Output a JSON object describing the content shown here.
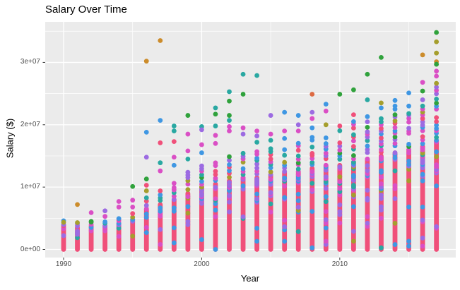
{
  "chart_data": {
    "type": "scatter",
    "title": "Salary Over Time",
    "xlabel": "Year",
    "ylabel": "Salary ($)",
    "x_ticks": [
      {
        "value": 1990,
        "label": "1990"
      },
      {
        "value": 2000,
        "label": "2000"
      },
      {
        "value": 2010,
        "label": "2010"
      }
    ],
    "y_ticks": [
      {
        "value": 0,
        "label": "0e+00"
      },
      {
        "value": 10000000,
        "label": "1e+07"
      },
      {
        "value": 20000000,
        "label": "2e+07"
      },
      {
        "value": 30000000,
        "label": "3e+07"
      }
    ],
    "x_minor": [
      1995,
      2005,
      2015
    ],
    "y_minor": [
      5000000,
      15000000,
      25000000,
      35000000
    ],
    "xlim": [
      1988.67,
      2018.4
    ],
    "ylim": [
      -1300000,
      36500000
    ],
    "grid": {
      "panel_bg": "#EBEBEB",
      "major_color": "#FFFFFF",
      "minor_color": "#FFFFFF",
      "tick_color": "#333333",
      "text_color": "#4D4D4D"
    },
    "legend": "none",
    "point_radius": 3.4,
    "palette": {
      "pink": "#F0507A",
      "magenta": "#DA4FC5",
      "purple": "#9C6BE2",
      "blue": "#3F97E3",
      "teal": "#29A8A2",
      "green": "#30A23C",
      "olive": "#A59E2D",
      "orange": "#CC8C2B",
      "orangered": "#DD6A42"
    },
    "dominant_color": "pink",
    "years": [
      {
        "year": 1990,
        "dense_top": 3600000,
        "mid_top": 4100000,
        "top_points": [
          {
            "v": 4600000,
            "c": "blue"
          },
          {
            "v": 4350000,
            "c": "olive"
          }
        ]
      },
      {
        "year": 1991,
        "dense_top": 3500000,
        "mid_top": 4050000,
        "top_points": [
          {
            "v": 7200000,
            "c": "orange"
          },
          {
            "v": 4300000,
            "c": "olive"
          }
        ]
      },
      {
        "year": 1992,
        "dense_top": 3800000,
        "mid_top": 4300000,
        "top_points": [
          {
            "v": 5900000,
            "c": "magenta"
          },
          {
            "v": 4500000,
            "c": "green"
          }
        ]
      },
      {
        "year": 1993,
        "dense_top": 3800000,
        "mid_top": 4450000,
        "top_points": [
          {
            "v": 6200000,
            "c": "purple"
          },
          {
            "v": 5300000,
            "c": "magenta"
          }
        ]
      },
      {
        "year": 1994,
        "dense_top": 4200000,
        "mid_top": 4800000,
        "top_points": [
          {
            "v": 7700000,
            "c": "magenta"
          },
          {
            "v": 6800000,
            "c": "magenta"
          },
          {
            "v": 4950000,
            "c": "blue"
          }
        ]
      },
      {
        "year": 1995,
        "dense_top": 4800000,
        "mid_top": 5700000,
        "top_points": [
          {
            "v": 10100000,
            "c": "green"
          },
          {
            "v": 7900000,
            "c": "magenta"
          },
          {
            "v": 6800000,
            "c": "magenta"
          }
        ]
      },
      {
        "year": 1996,
        "dense_top": 6500000,
        "mid_top": 8300000,
        "top_points": [
          {
            "v": 30200000,
            "c": "orange"
          },
          {
            "v": 18800000,
            "c": "blue"
          },
          {
            "v": 14800000,
            "c": "purple"
          },
          {
            "v": 11300000,
            "c": "green"
          },
          {
            "v": 10300000,
            "c": "pink"
          },
          {
            "v": 9400000,
            "c": "olive"
          }
        ]
      },
      {
        "year": 1997,
        "dense_top": 7200000,
        "mid_top": 10000000,
        "top_points": [
          {
            "v": 33500000,
            "c": "orange"
          },
          {
            "v": 20700000,
            "c": "blue"
          },
          {
            "v": 17100000,
            "c": "pink"
          },
          {
            "v": 13900000,
            "c": "teal"
          },
          {
            "v": 12600000,
            "c": "magenta"
          }
        ]
      },
      {
        "year": 1998,
        "dense_top": 8000000,
        "mid_top": 11500000,
        "top_points": [
          {
            "v": 19800000,
            "c": "teal"
          },
          {
            "v": 19000000,
            "c": "teal"
          },
          {
            "v": 17300000,
            "c": "pink"
          },
          {
            "v": 14800000,
            "c": "magenta"
          },
          {
            "v": 13500000,
            "c": "blue"
          }
        ]
      },
      {
        "year": 1999,
        "dense_top": 9000000,
        "mid_top": 12500000,
        "top_points": [
          {
            "v": 21500000,
            "c": "green"
          },
          {
            "v": 18500000,
            "c": "magenta"
          },
          {
            "v": 15800000,
            "c": "magenta"
          },
          {
            "v": 14500000,
            "c": "teal"
          }
        ]
      },
      {
        "year": 2000,
        "dense_top": 10000000,
        "mid_top": 13500000,
        "top_points": [
          {
            "v": 19700000,
            "c": "teal"
          },
          {
            "v": 19200000,
            "c": "purple"
          },
          {
            "v": 16800000,
            "c": "magenta"
          },
          {
            "v": 15500000,
            "c": "blue"
          }
        ]
      },
      {
        "year": 2001,
        "dense_top": 10500000,
        "mid_top": 14000000,
        "top_points": [
          {
            "v": 22700000,
            "c": "teal"
          },
          {
            "v": 21700000,
            "c": "green"
          },
          {
            "v": 19800000,
            "c": "teal"
          },
          {
            "v": 18300000,
            "c": "magenta"
          },
          {
            "v": 17000000,
            "c": "magenta"
          }
        ]
      },
      {
        "year": 2002,
        "dense_top": 11000000,
        "mid_top": 14800000,
        "top_points": [
          {
            "v": 25300000,
            "c": "teal"
          },
          {
            "v": 23800000,
            "c": "green"
          },
          {
            "v": 21500000,
            "c": "green"
          },
          {
            "v": 20700000,
            "c": "teal"
          },
          {
            "v": 19700000,
            "c": "magenta"
          },
          {
            "v": 19000000,
            "c": "magenta"
          }
        ]
      },
      {
        "year": 2003,
        "dense_top": 11500000,
        "mid_top": 15500000,
        "top_points": [
          {
            "v": 28100000,
            "c": "teal"
          },
          {
            "v": 24900000,
            "c": "green"
          },
          {
            "v": 19500000,
            "c": "magenta"
          },
          {
            "v": 18500000,
            "c": "purple"
          }
        ]
      },
      {
        "year": 2004,
        "dense_top": 11500000,
        "mid_top": 15800000,
        "top_points": [
          {
            "v": 27900000,
            "c": "teal"
          },
          {
            "v": 19000000,
            "c": "magenta"
          },
          {
            "v": 18200000,
            "c": "purple"
          },
          {
            "v": 17200000,
            "c": "teal"
          }
        ]
      },
      {
        "year": 2005,
        "dense_top": 12000000,
        "mid_top": 16200000,
        "top_points": [
          {
            "v": 21500000,
            "c": "purple"
          },
          {
            "v": 18500000,
            "c": "magenta"
          },
          {
            "v": 17500000,
            "c": "teal"
          }
        ]
      },
      {
        "year": 2006,
        "dense_top": 12500000,
        "mid_top": 16500000,
        "top_points": [
          {
            "v": 22000000,
            "c": "blue"
          },
          {
            "v": 19000000,
            "c": "magenta"
          },
          {
            "v": 17800000,
            "c": "blue"
          }
        ]
      },
      {
        "year": 2007,
        "dense_top": 12500000,
        "mid_top": 17000000,
        "top_points": [
          {
            "v": 21500000,
            "c": "blue"
          },
          {
            "v": 20000000,
            "c": "purple"
          },
          {
            "v": 19000000,
            "c": "magenta"
          }
        ]
      },
      {
        "year": 2008,
        "dense_top": 13000000,
        "mid_top": 18000000,
        "top_points": [
          {
            "v": 24900000,
            "c": "orangered"
          },
          {
            "v": 22000000,
            "c": "purple"
          },
          {
            "v": 21000000,
            "c": "magenta"
          },
          {
            "v": 19500000,
            "c": "blue"
          }
        ]
      },
      {
        "year": 2009,
        "dense_top": 13500000,
        "mid_top": 18500000,
        "top_points": [
          {
            "v": 23300000,
            "c": "blue"
          },
          {
            "v": 22200000,
            "c": "magenta"
          },
          {
            "v": 20000000,
            "c": "olive"
          }
        ]
      },
      {
        "year": 2010,
        "dense_top": 13500000,
        "mid_top": 19500000,
        "top_points": [
          {
            "v": 24900000,
            "c": "green"
          },
          {
            "v": 19800000,
            "c": "pink"
          }
        ]
      },
      {
        "year": 2011,
        "dense_top": 14000000,
        "mid_top": 20000000,
        "top_points": [
          {
            "v": 25600000,
            "c": "green"
          },
          {
            "v": 21600000,
            "c": "pink"
          },
          {
            "v": 20500000,
            "c": "blue"
          }
        ]
      },
      {
        "year": 2012,
        "dense_top": 14500000,
        "mid_top": 20500000,
        "top_points": [
          {
            "v": 28100000,
            "c": "green"
          },
          {
            "v": 24000000,
            "c": "teal"
          },
          {
            "v": 21300000,
            "c": "blue"
          }
        ]
      },
      {
        "year": 2013,
        "dense_top": 15000000,
        "mid_top": 21000000,
        "top_points": [
          {
            "v": 30800000,
            "c": "green"
          },
          {
            "v": 23500000,
            "c": "olive"
          },
          {
            "v": 22700000,
            "c": "blue"
          }
        ]
      },
      {
        "year": 2014,
        "dense_top": 15500000,
        "mid_top": 21200000,
        "top_points": [
          {
            "v": 23900000,
            "c": "blue"
          },
          {
            "v": 23000000,
            "c": "blue"
          },
          {
            "v": 22500000,
            "c": "blue"
          },
          {
            "v": 21600000,
            "c": "green"
          }
        ]
      },
      {
        "year": 2015,
        "dense_top": 16000000,
        "mid_top": 21500000,
        "top_points": [
          {
            "v": 25100000,
            "c": "blue"
          },
          {
            "v": 23000000,
            "c": "blue"
          },
          {
            "v": 21800000,
            "c": "teal"
          }
        ]
      },
      {
        "year": 2016,
        "dense_top": 16500000,
        "mid_top": 22500000,
        "top_points": [
          {
            "v": 31200000,
            "c": "orange"
          },
          {
            "v": 26800000,
            "c": "magenta"
          },
          {
            "v": 25400000,
            "c": "green"
          },
          {
            "v": 24000000,
            "c": "purple"
          },
          {
            "v": 23000000,
            "c": "teal"
          }
        ]
      },
      {
        "year": 2017,
        "dense_top": 17500000,
        "mid_top": 26600000,
        "top_points": [
          {
            "v": 34800000,
            "c": "green"
          },
          {
            "v": 33300000,
            "c": "olive"
          },
          {
            "v": 31500000,
            "c": "olive"
          },
          {
            "v": 30100000,
            "c": "orange"
          },
          {
            "v": 29700000,
            "c": "green"
          },
          {
            "v": 28600000,
            "c": "magenta"
          },
          {
            "v": 27800000,
            "c": "magenta"
          }
        ]
      }
    ]
  }
}
